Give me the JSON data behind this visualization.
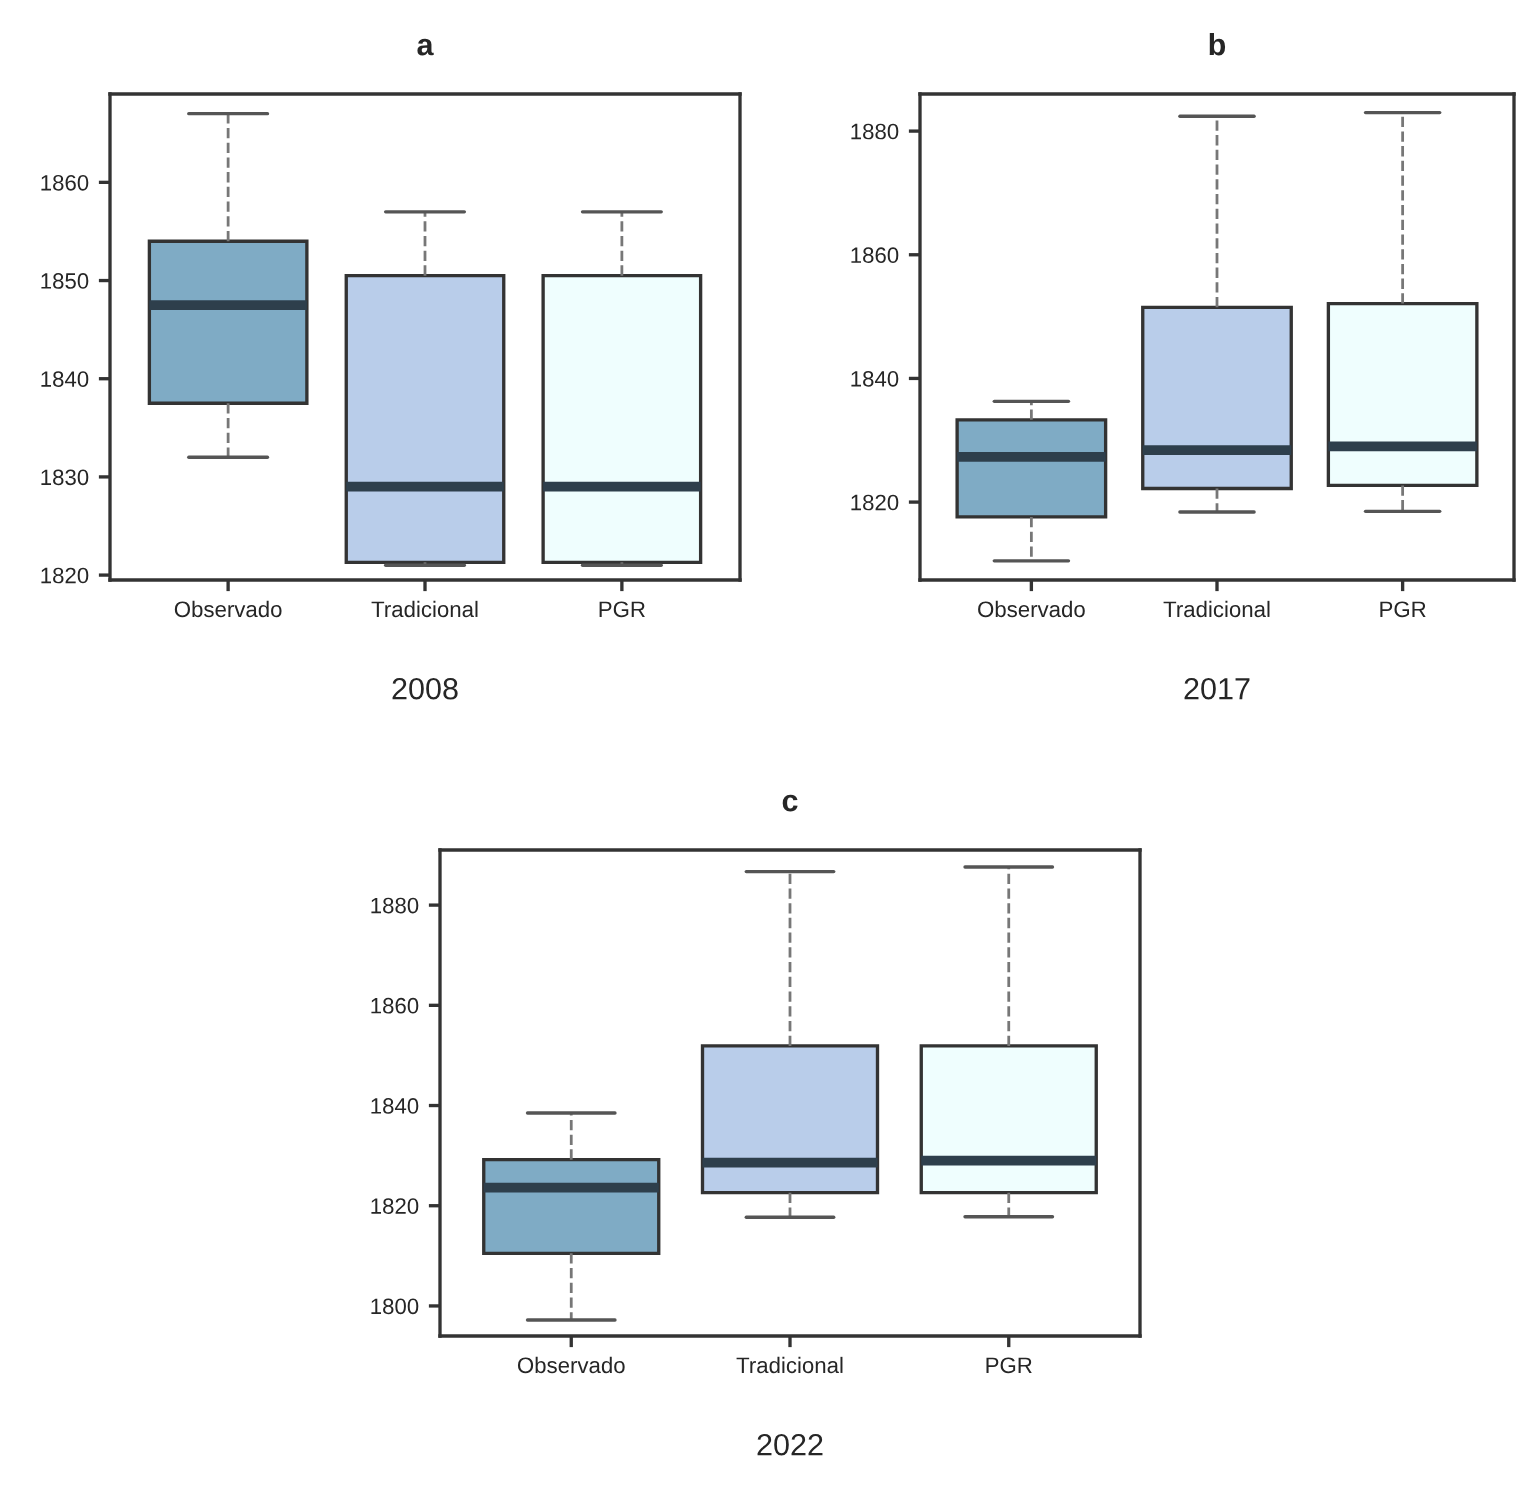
{
  "chart_data": [
    {
      "type": "box",
      "title": "a",
      "xlabel": "2008",
      "categories": [
        "Observado",
        "Tradicional",
        "PGR"
      ],
      "colors": [
        "#7fabc5",
        "#b9cdea",
        "#effefe"
      ],
      "boxes": [
        {
          "low": 1832,
          "q1": 1837.5,
          "median": 1847.5,
          "q3": 1854,
          "high": 1867
        },
        {
          "low": 1821,
          "q1": 1821.3,
          "median": 1829,
          "q3": 1850.5,
          "high": 1857
        },
        {
          "low": 1821,
          "q1": 1821.3,
          "median": 1829,
          "q3": 1850.5,
          "high": 1857
        }
      ],
      "ylim": [
        1819.5,
        1869
      ],
      "yticks": [
        1820,
        1830,
        1840,
        1850,
        1860
      ],
      "grid": false,
      "legend": false
    },
    {
      "type": "box",
      "title": "b",
      "xlabel": "2017",
      "categories": [
        "Observado",
        "Tradicional",
        "PGR"
      ],
      "colors": [
        "#7fabc5",
        "#b9cdea",
        "#effefe"
      ],
      "boxes": [
        {
          "low": 1810.5,
          "q1": 1817.6,
          "median": 1827.3,
          "q3": 1833.3,
          "high": 1836.3
        },
        {
          "low": 1818.4,
          "q1": 1822.2,
          "median": 1828.4,
          "q3": 1851.5,
          "high": 1882.4
        },
        {
          "low": 1818.5,
          "q1": 1822.7,
          "median": 1829,
          "q3": 1852.1,
          "high": 1883
        }
      ],
      "ylim": [
        1807.4,
        1886
      ],
      "yticks": [
        1820,
        1840,
        1860,
        1880
      ],
      "grid": false,
      "legend": false
    },
    {
      "type": "box",
      "title": "c",
      "xlabel": "2022",
      "categories": [
        "Observado",
        "Tradicional",
        "PGR"
      ],
      "colors": [
        "#7fabc5",
        "#b9cdea",
        "#effefe"
      ],
      "boxes": [
        {
          "low": 1797.2,
          "q1": 1810.5,
          "median": 1823.6,
          "q3": 1829.2,
          "high": 1838.5
        },
        {
          "low": 1817.7,
          "q1": 1822.6,
          "median": 1828.6,
          "q3": 1851.9,
          "high": 1886.7
        },
        {
          "low": 1817.8,
          "q1": 1822.6,
          "median": 1829,
          "q3": 1851.9,
          "high": 1887.6
        }
      ],
      "ylim": [
        1794,
        1891
      ],
      "yticks": [
        1800,
        1820,
        1840,
        1860,
        1880
      ],
      "grid": false,
      "legend": false
    }
  ]
}
